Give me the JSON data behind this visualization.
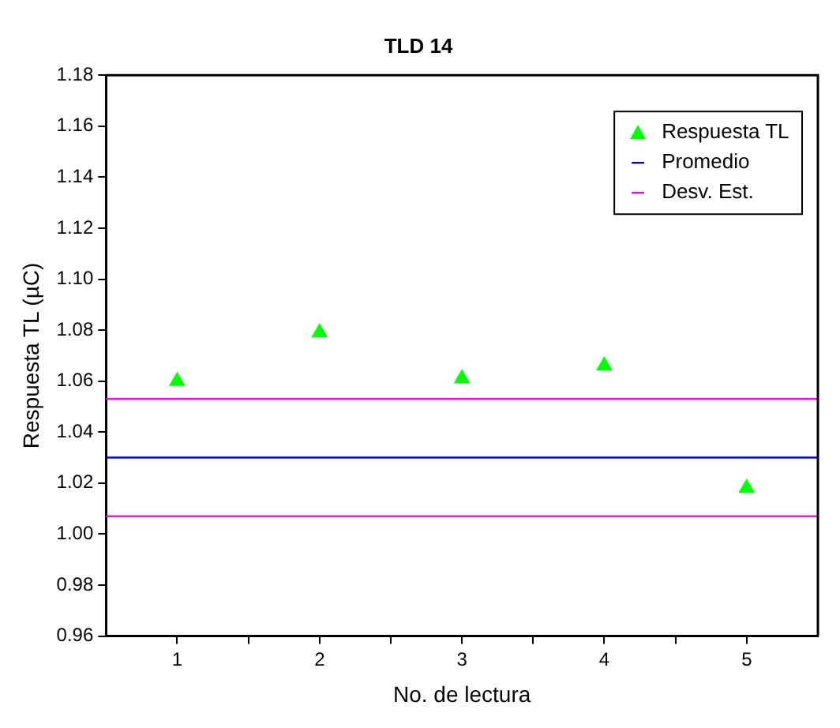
{
  "chart_data": {
    "type": "scatter",
    "title": "TLD 14",
    "xlabel": "No. de lectura",
    "ylabel": "Respuesta TL (µC)",
    "x": [
      1,
      2,
      3,
      4,
      5
    ],
    "series": [
      {
        "name": "Respuesta TL",
        "color": "#00ff00",
        "values": [
          1.06,
          1.079,
          1.061,
          1.066,
          1.018
        ]
      }
    ],
    "marker": "triangle",
    "ref_lines": [
      {
        "axis": "y",
        "value": 1.03,
        "label": "Promedio",
        "color": "#0000ff"
      },
      {
        "axis": "y",
        "value": 1.053,
        "label": "Desv. Est.",
        "color": "#ff00ff"
      },
      {
        "axis": "y",
        "value": 1.007,
        "color": "#ff00ff"
      }
    ],
    "xlim": [
      0.5,
      5.5
    ],
    "xticks": [
      1,
      {
        "value": 1.5,
        "label": null
      },
      2,
      {
        "value": 2.5,
        "label": null
      },
      3,
      {
        "value": 3.5,
        "label": null
      },
      4,
      {
        "value": 4.5,
        "label": null
      },
      5
    ],
    "ylim": [
      0.96,
      1.18
    ],
    "yticks": [
      {
        "value": 0.96,
        "label": "0.96"
      },
      {
        "value": 0.98,
        "label": "0.98"
      },
      {
        "value": 1.0,
        "label": "1.00"
      },
      {
        "value": 1.02,
        "label": "1.02"
      },
      {
        "value": 1.04,
        "label": "1.04"
      },
      {
        "value": 1.06,
        "label": "1.06"
      },
      {
        "value": 1.08,
        "label": "1.08"
      },
      {
        "value": 1.1,
        "label": "1.10"
      },
      {
        "value": 1.12,
        "label": "1.12"
      },
      {
        "value": 1.14,
        "label": "1.14"
      },
      {
        "value": 1.16,
        "label": "1.16"
      },
      {
        "value": 1.18,
        "label": "1.18"
      }
    ],
    "grid": false,
    "legend": "top right"
  }
}
